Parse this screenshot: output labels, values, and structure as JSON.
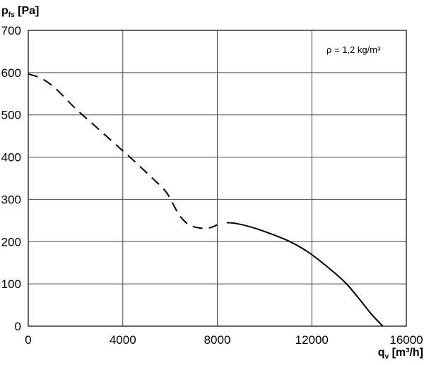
{
  "chart_data": {
    "type": "line",
    "ylabel": {
      "main": "p",
      "sub": "fs",
      "unit": " [Pa]"
    },
    "xlabel": {
      "main": "q",
      "sub": "v",
      "unit": " [m³/h]"
    },
    "xlim": [
      0,
      16000
    ],
    "ylim": [
      0,
      700
    ],
    "x_ticks": [
      0,
      4000,
      8000,
      12000,
      16000
    ],
    "y_ticks": [
      0,
      100,
      200,
      300,
      400,
      500,
      600,
      700
    ],
    "x_tick_labels": [
      "0",
      "4000",
      "8000",
      "12000",
      "16000"
    ],
    "y_tick_labels": [
      "0",
      "100",
      "200",
      "300",
      "400",
      "500",
      "600",
      "700"
    ],
    "grid": true,
    "annotation": "ρ = 1,2 kg/m³",
    "series": [
      {
        "style": "dashed",
        "x": [
          0,
          600,
          1200,
          2000,
          2800,
          3600,
          4400,
          5200,
          5800,
          6100,
          6400,
          6800,
          7300,
          7700,
          8000
        ],
        "y": [
          597,
          585,
          560,
          515,
          475,
          435,
          395,
          353,
          320,
          292,
          262,
          240,
          232,
          233,
          240
        ]
      },
      {
        "style": "solid",
        "x": [
          8400,
          8800,
          9400,
          10200,
          11000,
          11800,
          12600,
          13400,
          14000,
          14500,
          15000
        ],
        "y": [
          245,
          243,
          235,
          220,
          202,
          177,
          143,
          104,
          65,
          30,
          0
        ]
      }
    ]
  }
}
